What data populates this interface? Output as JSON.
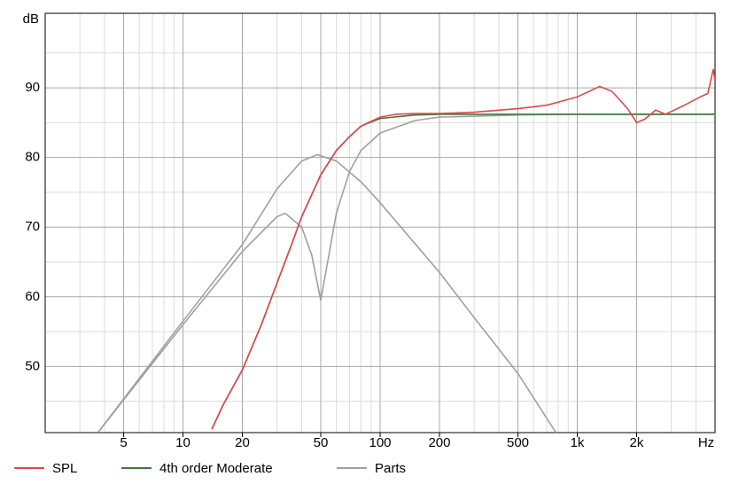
{
  "chart_data": {
    "type": "line",
    "ylabel": "dB",
    "xlabel": "Hz",
    "xscale": "log",
    "grid": true,
    "xlim": [
      2,
      5000
    ],
    "ylim": [
      40.5,
      100.7
    ],
    "xticks": [
      5,
      10,
      20,
      50,
      100,
      200,
      500,
      {
        "value": 1000,
        "label": "1k"
      },
      {
        "value": 2000,
        "label": "2k"
      }
    ],
    "xminorticks": [
      3,
      4,
      6,
      7,
      8,
      9,
      30,
      40,
      60,
      70,
      80,
      90,
      300,
      400,
      600,
      700,
      800,
      900,
      3000,
      4000
    ],
    "yticks": [
      50,
      60,
      70,
      80,
      90
    ],
    "yminorticks": [
      45,
      55,
      65,
      75,
      85,
      95
    ],
    "series": [
      {
        "name": "SPL",
        "color": "#e04848",
        "x": [
          14,
          16,
          20,
          25,
          30,
          35,
          40,
          50,
          60,
          70,
          80,
          100,
          120,
          150,
          200,
          300,
          500,
          700,
          1000,
          1300,
          1500,
          1800,
          2000,
          2200,
          2500,
          2800,
          3500,
          4200,
          4600,
          4900,
          5000
        ],
        "values": [
          41,
          44.5,
          49.5,
          56,
          62,
          67,
          71.5,
          77.5,
          81,
          83,
          84.5,
          85.8,
          86.2,
          86.3,
          86.3,
          86.5,
          87,
          87.5,
          88.7,
          90.2,
          89.5,
          87,
          85,
          85.5,
          86.8,
          86.2,
          87.5,
          88.7,
          89.2,
          92.7,
          91
        ]
      },
      {
        "name": "4th order Moderate",
        "color": "#3c7a3c",
        "x": [
          14,
          16,
          20,
          25,
          30,
          35,
          40,
          50,
          60,
          70,
          80,
          100,
          150,
          200,
          500,
          1000,
          5000
        ],
        "values": [
          41,
          44.5,
          49.5,
          56,
          62,
          67,
          71.5,
          77.5,
          81,
          83,
          84.5,
          85.6,
          86.1,
          86.2,
          86.2,
          86.2,
          86.2
        ]
      },
      {
        "name": "Parts",
        "color": "#a0a0a0",
        "x": [
          3.7,
          10,
          20,
          30,
          40,
          48,
          60,
          80,
          100,
          200,
          300,
          500,
          780,
          null,
          3.7,
          10,
          20,
          30,
          33,
          40,
          45,
          50,
          55,
          60,
          70,
          80,
          100,
          150,
          200,
          500,
          1000,
          5000
        ],
        "values": [
          40.5,
          56.5,
          67.5,
          75.5,
          79.5,
          80.4,
          79.5,
          76.5,
          73.5,
          63.5,
          57,
          49,
          40.5,
          null,
          40.5,
          56,
          66.5,
          71.5,
          72,
          70,
          66,
          59.5,
          66,
          72,
          78,
          81,
          83.5,
          85.3,
          85.8,
          86.1,
          86.2,
          86.2
        ]
      }
    ]
  }
}
